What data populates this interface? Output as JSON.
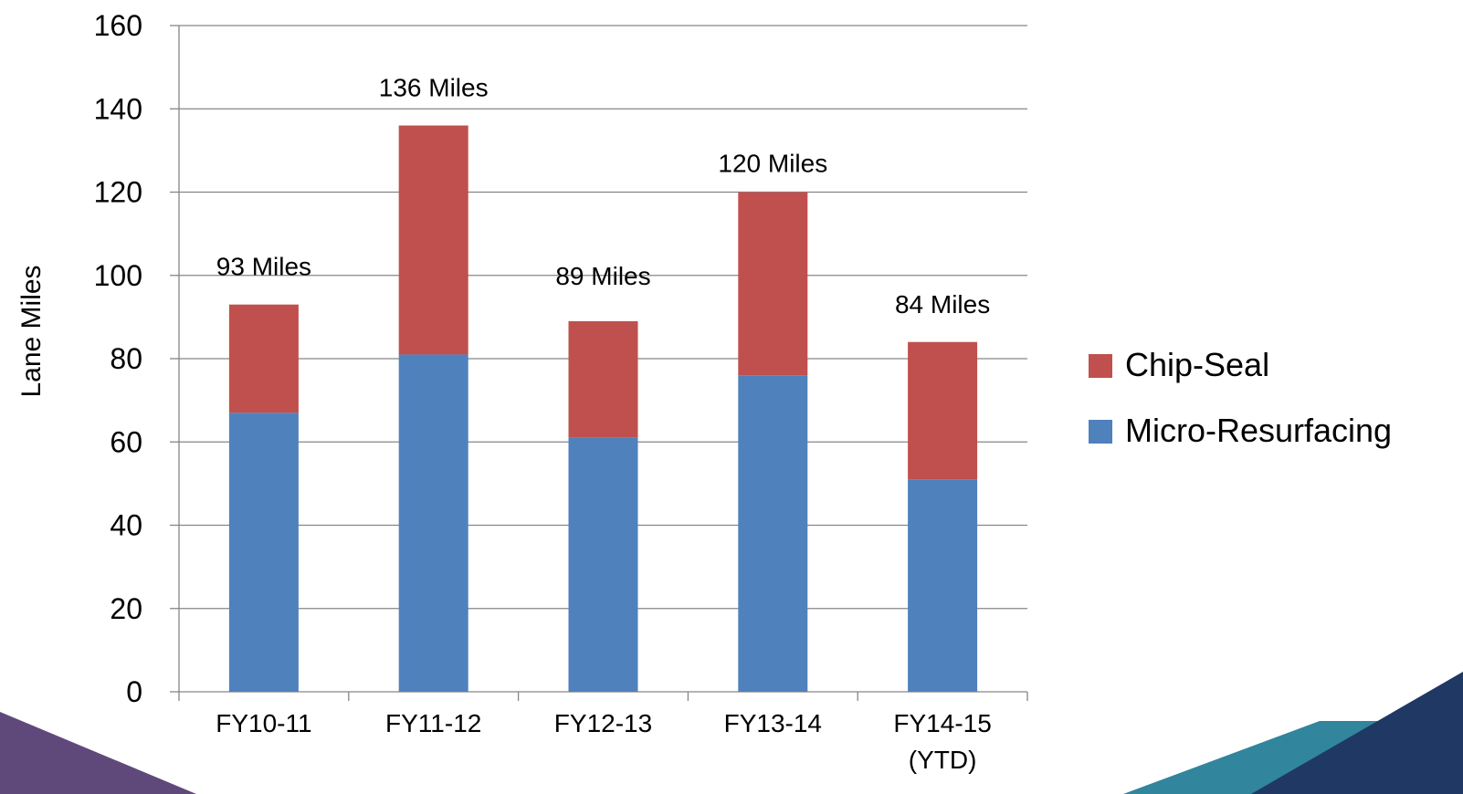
{
  "chart_data": {
    "type": "bar",
    "stacked": true,
    "categories": [
      [
        "FY10-11"
      ],
      [
        "FY11-12"
      ],
      [
        "FY12-13"
      ],
      [
        "FY13-14"
      ],
      [
        "FY14-15",
        "(YTD)"
      ]
    ],
    "series": [
      {
        "name": "Micro-Resurfacing",
        "color": "#4F81BD",
        "values": [
          67,
          81,
          61,
          76,
          51
        ]
      },
      {
        "name": "Chip-Seal",
        "color": "#C0504D",
        "values": [
          26,
          55,
          28,
          44,
          33
        ]
      }
    ],
    "totals_labels": [
      "93 Miles",
      "136 Miles",
      "89 Miles",
      "120 Miles",
      "84 Miles"
    ],
    "ylabel": "Lane Miles",
    "xlabel": "",
    "ylim": [
      0,
      160
    ],
    "yticks": [
      0,
      20,
      40,
      60,
      80,
      100,
      120,
      140,
      160
    ],
    "grid": true,
    "legend_position": "right",
    "legend_order": [
      "Chip-Seal",
      "Micro-Resurfacing"
    ]
  },
  "decor": {
    "left_shape_color": "#5F497A",
    "right_teal_color": "#31859C",
    "right_navy_color": "#1F3864"
  }
}
